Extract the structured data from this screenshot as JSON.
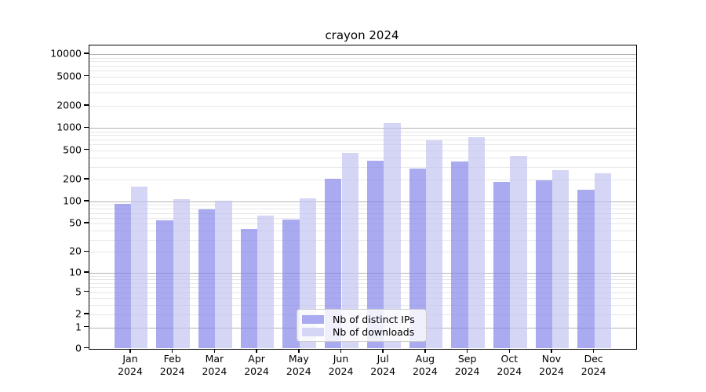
{
  "title": "crayon 2024",
  "year": "2024",
  "colors": {
    "series_ips": "#aaaaf0",
    "series_downloads": "#d5d5f5",
    "grid_major": "#b3b3b3",
    "grid_minor": "#e7e7e7",
    "spine": "#000000",
    "legend_border": "#cccccc"
  },
  "legend": {
    "items": [
      {
        "label": "Nb of distinct IPs",
        "color": "#aaaaf0"
      },
      {
        "label": "Nb of downloads",
        "color": "#d5d5f5"
      }
    ]
  },
  "y_axis": {
    "tick_values": [
      0,
      1,
      2,
      5,
      10,
      20,
      50,
      100,
      200,
      500,
      1000,
      2000,
      5000,
      10000
    ],
    "tick_labels": [
      "0",
      "1",
      "2",
      "5",
      "10",
      "20",
      "50",
      "100",
      "200",
      "500",
      "1000",
      "2000",
      "5000",
      "10000"
    ]
  },
  "x_axis": {
    "months": [
      "Jan",
      "Feb",
      "Mar",
      "Apr",
      "May",
      "Jun",
      "Jul",
      "Aug",
      "Sep",
      "Oct",
      "Nov",
      "Dec"
    ]
  },
  "chart_data": {
    "type": "bar",
    "title": "crayon 2024",
    "xlabel": "",
    "ylabel": "",
    "yscale": "log1p",
    "ylim": [
      0,
      13000
    ],
    "grid": true,
    "legend_position": "lower center",
    "categories": [
      "Jan 2024",
      "Feb 2024",
      "Mar 2024",
      "Apr 2024",
      "May 2024",
      "Jun 2024",
      "Jul 2024",
      "Aug 2024",
      "Sep 2024",
      "Oct 2024",
      "Nov 2024",
      "Dec 2024"
    ],
    "series": [
      {
        "name": "Nb of distinct IPs",
        "color": "#aaaaf0",
        "values": [
          93,
          56,
          78,
          42,
          57,
          207,
          365,
          283,
          350,
          187,
          195,
          147
        ]
      },
      {
        "name": "Nb of downloads",
        "color": "#d5d5f5",
        "values": [
          160,
          107,
          103,
          65,
          112,
          458,
          1160,
          678,
          748,
          415,
          268,
          242
        ]
      }
    ]
  }
}
